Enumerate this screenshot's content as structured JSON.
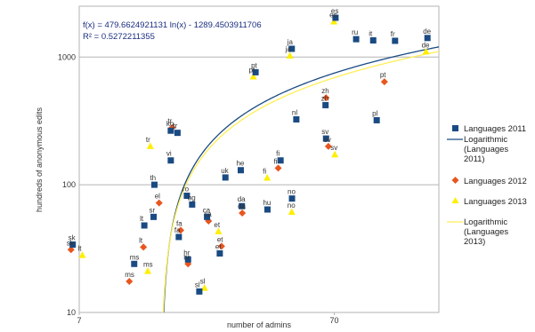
{
  "chart_data": {
    "type": "scatter",
    "xlabel": "number of admins",
    "ylabel": "hundreds of anonymous edits",
    "x_scale": "log",
    "y_scale": "log",
    "xlim": [
      7,
      180
    ],
    "ylim": [
      10,
      2500
    ],
    "x_ticks": [
      {
        "value": 7,
        "label": "7"
      },
      {
        "value": 70,
        "label": "70"
      }
    ],
    "y_ticks": [
      {
        "value": 10,
        "label": "10"
      },
      {
        "value": 100,
        "label": "100"
      },
      {
        "value": 1000,
        "label": "1000"
      }
    ],
    "grid": "horizontal",
    "legend_position": "right",
    "annotations": [
      "f(x) = 479.6624921131 ln(x) - 1289.4503911706",
      "R² = 0.5272211355"
    ],
    "colors": {
      "s2011": "#1a4a82",
      "s2012": "#e8561e",
      "s2013": "#ffee00",
      "trend2011": "#1a4a82",
      "trend2013": "#ffee55"
    },
    "series": [
      {
        "name": "Languages 2011",
        "marker": "square",
        "points": [
          {
            "label": "es",
            "x": 70.8,
            "y": 2030
          },
          {
            "label": "ru",
            "x": 85.3,
            "y": 1380
          },
          {
            "label": "it",
            "x": 99.5,
            "y": 1350
          },
          {
            "label": "fr",
            "x": 121.2,
            "y": 1340
          },
          {
            "label": "de",
            "x": 162.4,
            "y": 1410
          },
          {
            "label": "ja",
            "x": 47.7,
            "y": 1160
          },
          {
            "label": "pt",
            "x": 34.4,
            "y": 760
          },
          {
            "label": "zh",
            "x": 64.7,
            "y": 420
          },
          {
            "label": "pl",
            "x": 102.7,
            "y": 320
          },
          {
            "label": "nl",
            "x": 49.7,
            "y": 325
          },
          {
            "label": "sv",
            "x": 65.0,
            "y": 230
          },
          {
            "label": "fi",
            "x": 43.1,
            "y": 155
          },
          {
            "label": "ko",
            "x": 16.0,
            "y": 265
          },
          {
            "label": "tr",
            "x": 17.0,
            "y": 255
          },
          {
            "label": "vi",
            "x": 16.0,
            "y": 155
          },
          {
            "label": "uk",
            "x": 26.2,
            "y": 114
          },
          {
            "label": "he",
            "x": 30.1,
            "y": 130
          },
          {
            "label": "th",
            "x": 13.8,
            "y": 100
          },
          {
            "label": "ro",
            "x": 18.5,
            "y": 82
          },
          {
            "label": "bg",
            "x": 19.4,
            "y": 70
          },
          {
            "label": "ca",
            "x": 22.2,
            "y": 56
          },
          {
            "label": "da",
            "x": 30.4,
            "y": 68
          },
          {
            "label": "hu",
            "x": 38.3,
            "y": 64
          },
          {
            "label": "no",
            "x": 47.8,
            "y": 78
          },
          {
            "label": "lt",
            "x": 12.6,
            "y": 48
          },
          {
            "label": "sr",
            "x": 13.7,
            "y": 56
          },
          {
            "label": "fa",
            "x": 17.2,
            "y": 39
          },
          {
            "label": "et",
            "x": 24.9,
            "y": 29
          },
          {
            "label": "hr",
            "x": 18.7,
            "y": 26
          },
          {
            "label": "ms",
            "x": 11.5,
            "y": 24
          },
          {
            "label": "sl",
            "x": 20.7,
            "y": 14.6
          },
          {
            "label": "sk",
            "x": 6.6,
            "y": 34
          }
        ]
      },
      {
        "name": "Languages 2012",
        "marker": "diamond",
        "points": [
          {
            "label": "pt",
            "x": 110.1,
            "y": 640
          },
          {
            "label": "zh",
            "x": 65.0,
            "y": 480
          },
          {
            "label": "fi",
            "x": 42.2,
            "y": 135
          },
          {
            "label": "sv",
            "x": 66.4,
            "y": 200
          },
          {
            "label": "tr",
            "x": 16.2,
            "y": 280
          },
          {
            "label": "et",
            "x": 25.3,
            "y": 33
          },
          {
            "label": "hr",
            "x": 18.7,
            "y": 24
          },
          {
            "label": "ms",
            "x": 11.0,
            "y": 17.5
          },
          {
            "label": "lt",
            "x": 12.5,
            "y": 32.5
          },
          {
            "label": "sk",
            "x": 6.5,
            "y": 31
          },
          {
            "label": "el",
            "x": 14.4,
            "y": 72
          },
          {
            "label": "ca",
            "x": 22.5,
            "y": 52
          },
          {
            "label": "da",
            "x": 30.5,
            "y": 60
          },
          {
            "label": "fa",
            "x": 17.5,
            "y": 44
          }
        ]
      },
      {
        "name": "Languages 2013",
        "marker": "triangle",
        "points": [
          {
            "label": "es",
            "x": 69.8,
            "y": 1890
          },
          {
            "label": "ja",
            "x": 46.9,
            "y": 1020
          },
          {
            "label": "pt",
            "x": 33.7,
            "y": 700
          },
          {
            "label": "tr",
            "x": 13.3,
            "y": 200
          },
          {
            "label": "fi",
            "x": 38.2,
            "y": 113
          },
          {
            "label": "no",
            "x": 47.7,
            "y": 61
          },
          {
            "label": "sv",
            "x": 70.4,
            "y": 172
          },
          {
            "label": "lt",
            "x": 7.2,
            "y": 28
          },
          {
            "label": "ms",
            "x": 13.0,
            "y": 21
          },
          {
            "label": "et",
            "x": 24.6,
            "y": 43
          },
          {
            "label": "sl",
            "x": 21.7,
            "y": 15.5
          },
          {
            "label": "de",
            "x": 160.3,
            "y": 1100
          }
        ]
      }
    ],
    "trendlines": [
      {
        "name": "Logarithmic (Languages 2011)",
        "a": 479.6624921131,
        "b": -1289.4503911706
      },
      {
        "name": "Logarithmic (Languages 2013)",
        "a": 440,
        "b": -1180
      }
    ]
  }
}
